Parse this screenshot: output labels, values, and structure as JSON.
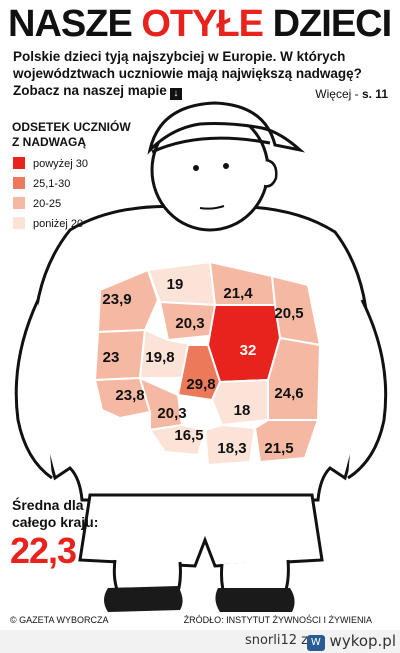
{
  "title": {
    "part1": "NASZE ",
    "part2": "OTYŁE",
    "part3": " DZIECI"
  },
  "intro": "Polskie dzieci tyją najszybciej w Europie. W których województwach uczniowie mają największą nadwagę? Zobacz na naszej mapie",
  "more": {
    "text": "Więcej - ",
    "page": "s. 11"
  },
  "legend": {
    "title_line1": "ODSETEK UCZNIÓW",
    "title_line2": "Z NADWAGĄ",
    "items": [
      {
        "label": "powyżej 30",
        "color": "#e8231e"
      },
      {
        "label": "25,1-30",
        "color": "#ec7a5a"
      },
      {
        "label": "20-25",
        "color": "#f5b9a3"
      },
      {
        "label": "poniżej 20",
        "color": "#fce3d8"
      }
    ]
  },
  "regions": [
    {
      "value": "23,9",
      "class": "20-25"
    },
    {
      "value": "19",
      "class": "poniżej 20"
    },
    {
      "value": "21,4",
      "class": "20-25"
    },
    {
      "value": "20,5",
      "class": "20-25"
    },
    {
      "value": "20,3",
      "class": "20-25"
    },
    {
      "value": "23",
      "class": "20-25"
    },
    {
      "value": "19,8",
      "class": "poniżej 20"
    },
    {
      "value": "32",
      "class": "powyżej 30"
    },
    {
      "value": "29,8",
      "class": "25,1-30"
    },
    {
      "value": "24,6",
      "class": "20-25"
    },
    {
      "value": "23,8",
      "class": "20-25"
    },
    {
      "value": "20,3",
      "class": "20-25"
    },
    {
      "value": "18",
      "class": "poniżej 20"
    },
    {
      "value": "16,5",
      "class": "poniżej 20"
    },
    {
      "value": "18,3",
      "class": "poniżej 20"
    },
    {
      "value": "21,5",
      "class": "20-25"
    }
  ],
  "average": {
    "label_line1": "Średna dla",
    "label_line2": "całego kraju:",
    "value": "22,3"
  },
  "footer": {
    "left": "© GAZETA WYBORCZA",
    "right": "ŹRÓDŁO: INSTYTUT ŻYWNOŚCI I ŻYWIENIA"
  },
  "watermark": {
    "user": "snorli12  z",
    "logo_text": "wykop.pl",
    "badge": "W"
  }
}
